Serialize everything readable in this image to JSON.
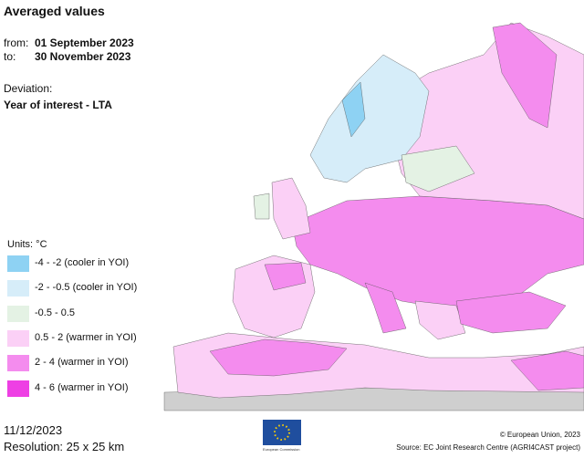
{
  "title": "Averaged values",
  "period": {
    "from_label": "from:",
    "from": "01 September 2023",
    "to_label": "to:",
    "to": "30 November 2023"
  },
  "deviation": {
    "label": "Deviation:",
    "value": "Year of interest - LTA"
  },
  "legend": {
    "title": "Units: °C",
    "items": [
      {
        "label": "-4 - -2 (cooler in YOI)",
        "color": "#8ed2f3"
      },
      {
        "label": "-2 - -0.5 (cooler in YOI)",
        "color": "#d6edf9"
      },
      {
        "label": "-0.5 - 0.5",
        "color": "#e4f2e4"
      },
      {
        "label": "0.5 - 2 (warmer in YOI)",
        "color": "#fbd0f6"
      },
      {
        "label": "2 - 4 (warmer in YOI)",
        "color": "#f48cee"
      },
      {
        "label": "4 - 6 (warmer in YOI)",
        "color": "#ee3fe4"
      }
    ]
  },
  "footer": {
    "date": "11/12/2023",
    "resolution": "Resolution: 25 x 25 km",
    "logo_text": "European Commission",
    "copyright": "© European Union, 2023",
    "source": "Source: EC Joint Research Centre (AGRI4CAST project)"
  }
}
